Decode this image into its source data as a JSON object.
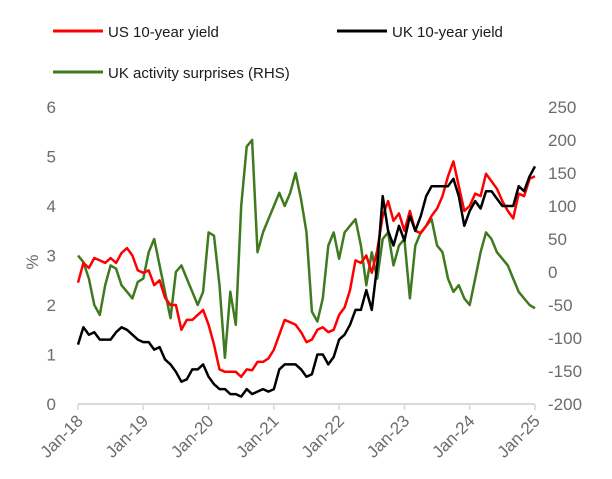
{
  "chart_data": {
    "type": "line",
    "title": "",
    "xlabel": "",
    "ylabel": "%",
    "ylabel_right": "",
    "ylim": [
      0,
      6
    ],
    "ylim_right": [
      -200,
      250
    ],
    "yticks": [
      0,
      1,
      2,
      3,
      4,
      5,
      6
    ],
    "yticks_right": [
      -200,
      -150,
      -100,
      -50,
      0,
      50,
      100,
      150,
      200,
      250
    ],
    "xticks": [
      "Jan-18",
      "Jan-19",
      "Jan-20",
      "Jan-21",
      "Jan-22",
      "Jan-23",
      "Jan-24",
      "Jan-25"
    ],
    "x_start": "Jan-18",
    "x_frequency": "monthly (approximate)",
    "grid": false,
    "legend_placement": "top",
    "series": [
      {
        "name": "US 10-year yield",
        "axis": "left",
        "color": "#ff0000",
        "values": [
          2.45,
          2.85,
          2.75,
          2.95,
          2.9,
          2.85,
          2.95,
          2.85,
          3.05,
          3.15,
          3.0,
          2.7,
          2.65,
          2.7,
          2.4,
          2.5,
          2.15,
          2.0,
          2.0,
          1.5,
          1.7,
          1.7,
          1.8,
          1.9,
          1.6,
          1.2,
          0.7,
          0.65,
          0.65,
          0.65,
          0.55,
          0.7,
          0.68,
          0.85,
          0.85,
          0.92,
          1.1,
          1.4,
          1.7,
          1.65,
          1.6,
          1.45,
          1.25,
          1.3,
          1.5,
          1.55,
          1.45,
          1.5,
          1.8,
          1.95,
          2.3,
          2.9,
          2.85,
          3.0,
          2.65,
          3.1,
          3.8,
          4.1,
          3.7,
          3.85,
          3.5,
          3.9,
          3.5,
          3.45,
          3.6,
          3.8,
          3.95,
          4.2,
          4.6,
          4.9,
          4.4,
          3.9,
          4.0,
          4.25,
          4.2,
          4.65,
          4.5,
          4.35,
          4.1,
          3.9,
          3.75,
          4.25,
          4.2,
          4.55,
          4.6
        ]
      },
      {
        "name": "UK 10-year yield",
        "axis": "left",
        "color": "#000000",
        "values": [
          1.2,
          1.55,
          1.4,
          1.45,
          1.3,
          1.3,
          1.3,
          1.45,
          1.55,
          1.5,
          1.4,
          1.3,
          1.25,
          1.25,
          1.1,
          1.15,
          0.9,
          0.8,
          0.65,
          0.45,
          0.5,
          0.7,
          0.7,
          0.8,
          0.55,
          0.4,
          0.3,
          0.3,
          0.2,
          0.2,
          0.15,
          0.3,
          0.2,
          0.25,
          0.3,
          0.25,
          0.3,
          0.7,
          0.8,
          0.8,
          0.8,
          0.7,
          0.55,
          0.6,
          1.0,
          1.0,
          0.8,
          0.95,
          1.3,
          1.4,
          1.6,
          1.9,
          1.9,
          2.3,
          1.9,
          2.8,
          4.2,
          3.5,
          3.2,
          3.6,
          3.3,
          3.8,
          3.5,
          3.8,
          4.2,
          4.4,
          4.4,
          4.4,
          4.4,
          4.55,
          4.2,
          3.6,
          3.9,
          4.1,
          3.95,
          4.3,
          4.3,
          4.15,
          4.0,
          4.0,
          4.0,
          4.4,
          4.3,
          4.6,
          4.8
        ]
      },
      {
        "name": "UK activity surprises (RHS)",
        "axis": "right",
        "color": "#3f7a1f",
        "values": [
          25,
          15,
          -10,
          -50,
          -65,
          -20,
          10,
          5,
          -20,
          -30,
          -40,
          -15,
          -10,
          30,
          50,
          10,
          -30,
          -70,
          0,
          10,
          -10,
          -30,
          -50,
          -30,
          60,
          55,
          -20,
          -130,
          -30,
          -80,
          100,
          190,
          200,
          30,
          60,
          80,
          100,
          120,
          100,
          120,
          150,
          110,
          60,
          -60,
          -75,
          -40,
          40,
          60,
          20,
          60,
          70,
          80,
          40,
          -20,
          30,
          -10,
          50,
          60,
          10,
          40,
          50,
          -40,
          40,
          60,
          70,
          80,
          40,
          30,
          -10,
          -30,
          -20,
          -40,
          -50,
          -10,
          30,
          60,
          50,
          30,
          20,
          10,
          -10,
          -30,
          -40,
          -50,
          -55
        ]
      }
    ]
  }
}
